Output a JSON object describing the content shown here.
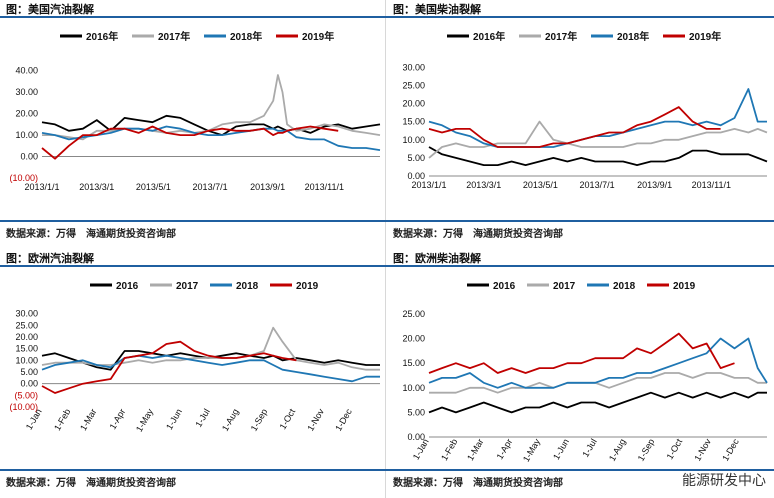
{
  "panels": [
    {
      "title": "图：美国汽油裂解",
      "source": "数据来源：万得　海通期货投资咨询部",
      "chart_data": {
        "type": "line",
        "title": "图：美国汽油裂解",
        "x_axis": "date",
        "x_ticks": [
          "2013/1/1",
          "2013/3/1",
          "2013/5/1",
          "2013/7/1",
          "2013/9/1",
          "2013/11/1"
        ],
        "x_tick_pos": [
          1,
          60,
          121,
          182,
          244,
          305
        ],
        "x_range": [
          1,
          365
        ],
        "y_ticks": [
          "(10.00)",
          "0.00",
          "10.00",
          "20.00",
          "30.00",
          "40.00"
        ],
        "y_tick_values": [
          -10,
          0,
          10,
          20,
          30,
          40
        ],
        "ylim": [
          -10,
          45
        ],
        "legend_position": "top",
        "x": [
          1,
          15,
          30,
          45,
          60,
          75,
          90,
          105,
          120,
          135,
          150,
          165,
          180,
          195,
          210,
          225,
          240,
          250,
          255,
          260,
          265,
          275,
          290,
          305,
          320,
          335,
          350,
          365
        ],
        "series": [
          {
            "name": "2016年",
            "color": "#000000",
            "values": [
              16,
              15,
              12,
              13,
              17,
              12,
              18,
              17,
              16,
              19,
              18,
              15,
              12,
              10,
              14,
              15,
              15,
              13,
              14,
              13,
              12,
              13,
              11,
              14,
              15,
              13,
              14,
              15
            ]
          },
          {
            "name": "2017年",
            "color": "#aaaaaa",
            "values": [
              10,
              10,
              9,
              8,
              12,
              12,
              13,
              13,
              12,
              11,
              12,
              11,
              12,
              15,
              16,
              16,
              19,
              26,
              38,
              30,
              15,
              12,
              13,
              15,
              14,
              12,
              11,
              10
            ]
          },
          {
            "name": "2018年",
            "color": "#1f77b4",
            "values": [
              11,
              10,
              8,
              9,
              10,
              11,
              13,
              13,
              12,
              14,
              13,
              11,
              10,
              10,
              11,
              12,
              13,
              13,
              12,
              12,
              12,
              9,
              8,
              8,
              5,
              4,
              4,
              3
            ]
          },
          {
            "name": "2019年",
            "color": "#c00000",
            "values": [
              4,
              -1,
              5,
              10,
              10,
              13,
              13,
              11,
              14,
              11,
              10,
              10,
              12,
              13,
              12,
              12,
              13,
              10,
              11,
              11,
              12,
              13,
              14,
              13,
              12,
              null,
              null,
              null
            ]
          }
        ]
      }
    },
    {
      "title": "图：美国柴油裂解",
      "source": "数据来源：万得　海通期货投资咨询部",
      "chart_data": {
        "type": "line",
        "title": "图：美国柴油裂解",
        "x_axis": "date",
        "x_ticks": [
          "2013/1/1",
          "2013/3/1",
          "2013/5/1",
          "2013/7/1",
          "2013/9/1",
          "2013/11/1"
        ],
        "x_tick_pos": [
          1,
          60,
          121,
          182,
          244,
          305
        ],
        "x_range": [
          1,
          365
        ],
        "y_ticks": [
          "0.00",
          "5.00",
          "10.00",
          "15.00",
          "20.00",
          "25.00",
          "30.00"
        ],
        "y_tick_values": [
          0,
          5,
          10,
          15,
          20,
          25,
          30
        ],
        "ylim": [
          0,
          32
        ],
        "legend_position": "top",
        "x": [
          1,
          15,
          30,
          45,
          60,
          75,
          90,
          105,
          120,
          135,
          150,
          165,
          180,
          195,
          210,
          225,
          240,
          255,
          270,
          285,
          300,
          315,
          330,
          345,
          355,
          365
        ],
        "series": [
          {
            "name": "2016年",
            "color": "#000000",
            "values": [
              8,
              6,
              5,
              4,
              3,
              3,
              4,
              3,
              4,
              5,
              4,
              5,
              4,
              4,
              4,
              3,
              4,
              4,
              5,
              7,
              7,
              6,
              6,
              6,
              5,
              4
            ]
          },
          {
            "name": "2017年",
            "color": "#aaaaaa",
            "values": [
              5,
              8,
              9,
              8,
              8,
              9,
              9,
              9,
              15,
              10,
              9,
              8,
              8,
              8,
              8,
              9,
              9,
              10,
              10,
              11,
              12,
              12,
              13,
              12,
              13,
              12
            ]
          },
          {
            "name": "2018年",
            "color": "#1f77b4",
            "values": [
              15,
              14,
              12,
              11,
              9,
              8,
              8,
              8,
              8,
              8,
              9,
              10,
              11,
              11,
              12,
              13,
              14,
              15,
              15,
              14,
              15,
              14,
              16,
              24,
              15,
              15
            ]
          },
          {
            "name": "2019年",
            "color": "#c00000",
            "values": [
              13,
              12,
              13,
              13,
              10,
              8,
              8,
              8,
              8,
              9,
              9,
              10,
              11,
              12,
              12,
              14,
              15,
              17,
              19,
              15,
              13,
              13,
              null,
              null,
              null,
              null
            ]
          }
        ]
      }
    },
    {
      "title": "图：欧洲汽油裂解",
      "source": "数据来源：万得　海通期货投资咨询部",
      "chart_data": {
        "type": "line",
        "title": "图：欧洲汽油裂解",
        "x_axis": "date",
        "x_ticks": [
          "1-Jan",
          "1-Feb",
          "1-Mar",
          "1-Apr",
          "1-May",
          "1-Jun",
          "1-Jul",
          "1-Aug",
          "1-Sep",
          "1-Oct",
          "1-Nov",
          "1-Dec"
        ],
        "x_tick_pos": [
          1,
          32,
          60,
          91,
          121,
          152,
          182,
          213,
          244,
          274,
          305,
          335
        ],
        "x_range": [
          1,
          365
        ],
        "y_ticks": [
          "(10.00)",
          "(5.00)",
          "0.00",
          "5.00",
          "10.00",
          "15.00",
          "20.00",
          "25.00",
          "30.00"
        ],
        "y_tick_values": [
          -10,
          -5,
          0,
          5,
          10,
          15,
          20,
          25,
          30
        ],
        "ylim": [
          -10,
          32
        ],
        "legend_position": "top",
        "x": [
          1,
          15,
          30,
          45,
          60,
          75,
          90,
          105,
          120,
          135,
          150,
          165,
          180,
          195,
          210,
          225,
          240,
          250,
          260,
          275,
          290,
          305,
          320,
          335,
          350,
          365
        ],
        "series": [
          {
            "name": "2016",
            "color": "#000000",
            "values": [
              12,
              13,
              11,
              9,
              7,
              6,
              14,
              14,
              13,
              12,
              13,
              12,
              11,
              12,
              13,
              12,
              11,
              12,
              10,
              11,
              10,
              9,
              10,
              9,
              8,
              8
            ]
          },
          {
            "name": "2017",
            "color": "#aaaaaa",
            "values": [
              8,
              9,
              9,
              9,
              8,
              8,
              9,
              10,
              9,
              10,
              10,
              11,
              11,
              11,
              11,
              12,
              14,
              24,
              18,
              10,
              9,
              8,
              9,
              7,
              6,
              6
            ]
          },
          {
            "name": "2018",
            "color": "#1f77b4",
            "values": [
              6,
              8,
              9,
              10,
              8,
              7,
              11,
              12,
              11,
              12,
              11,
              10,
              9,
              8,
              9,
              10,
              10,
              8,
              6,
              5,
              4,
              3,
              2,
              1,
              3,
              3
            ]
          },
          {
            "name": "2019",
            "color": "#c00000",
            "values": [
              -1,
              -4,
              -2,
              0,
              1,
              2,
              11,
              12,
              13,
              17,
              18,
              14,
              12,
              11,
              11,
              12,
              13,
              12,
              11,
              10,
              null,
              null,
              null,
              null,
              null,
              null
            ]
          }
        ]
      }
    },
    {
      "title": "图：欧洲柴油裂解",
      "source": "数据来源：万得　海通期货投资咨询部",
      "watermark": "能源研发中心",
      "chart_data": {
        "type": "line",
        "title": "图：欧洲柴油裂解",
        "x_axis": "date",
        "x_ticks": [
          "1-Jan",
          "1-Feb",
          "1-Mar",
          "1-Apr",
          "1-May",
          "1-Jun",
          "1-Jul",
          "1-Aug",
          "1-Sep",
          "1-Oct",
          "1-Nov",
          "1-Dec"
        ],
        "x_tick_pos": [
          1,
          32,
          60,
          91,
          121,
          152,
          182,
          213,
          244,
          274,
          305,
          335
        ],
        "x_range": [
          1,
          365
        ],
        "y_ticks": [
          "0.00",
          "5.00",
          "10.00",
          "15.00",
          "20.00",
          "25.00"
        ],
        "y_tick_values": [
          0,
          5,
          10,
          15,
          20,
          25
        ],
        "ylim": [
          0,
          26
        ],
        "legend_position": "top",
        "x": [
          1,
          15,
          30,
          45,
          60,
          75,
          90,
          105,
          120,
          135,
          150,
          165,
          180,
          195,
          210,
          225,
          240,
          255,
          270,
          285,
          300,
          315,
          330,
          345,
          355,
          365
        ],
        "series": [
          {
            "name": "2016",
            "color": "#000000",
            "values": [
              5,
              6,
              5,
              6,
              7,
              6,
              5,
              6,
              6,
              7,
              6,
              7,
              7,
              6,
              7,
              8,
              9,
              8,
              9,
              8,
              9,
              8,
              9,
              8,
              9,
              9
            ]
          },
          {
            "name": "2017",
            "color": "#aaaaaa",
            "values": [
              9,
              9,
              9,
              10,
              10,
              9,
              10,
              10,
              11,
              10,
              11,
              11,
              11,
              10,
              11,
              12,
              12,
              13,
              13,
              12,
              13,
              13,
              12,
              12,
              11,
              11
            ]
          },
          {
            "name": "2018",
            "color": "#1f77b4",
            "values": [
              11,
              12,
              12,
              13,
              11,
              10,
              11,
              10,
              10,
              10,
              11,
              11,
              11,
              12,
              12,
              13,
              13,
              14,
              15,
              16,
              17,
              20,
              18,
              20,
              14,
              11
            ]
          },
          {
            "name": "2019",
            "color": "#c00000",
            "values": [
              13,
              14,
              15,
              14,
              15,
              13,
              14,
              13,
              14,
              14,
              15,
              15,
              16,
              16,
              16,
              18,
              17,
              19,
              21,
              18,
              19,
              14,
              15,
              null,
              null,
              null
            ]
          }
        ]
      }
    }
  ]
}
